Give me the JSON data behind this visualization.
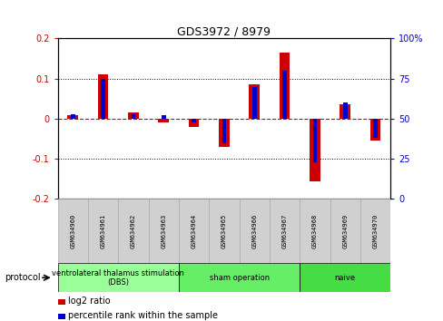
{
  "title": "GDS3972 / 8979",
  "samples": [
    "GSM634960",
    "GSM634961",
    "GSM634962",
    "GSM634963",
    "GSM634964",
    "GSM634965",
    "GSM634966",
    "GSM634967",
    "GSM634968",
    "GSM634969",
    "GSM634970"
  ],
  "log2_ratio": [
    0.01,
    0.11,
    0.015,
    -0.01,
    -0.02,
    -0.07,
    0.085,
    0.165,
    -0.155,
    0.035,
    -0.055
  ],
  "percentile_rank": [
    53,
    75,
    53,
    52,
    48,
    35,
    70,
    80,
    23,
    60,
    38
  ],
  "ylim_left": [
    -0.2,
    0.2
  ],
  "ylim_right": [
    0,
    100
  ],
  "yticks_left": [
    -0.2,
    -0.1,
    0.0,
    0.1,
    0.2
  ],
  "yticks_right": [
    0,
    25,
    50,
    75,
    100
  ],
  "bar_width": 0.35,
  "red_color": "#cc0000",
  "blue_color": "#0000cc",
  "groups": [
    {
      "label": "ventrolateral thalamus stimulation\n(DBS)",
      "start": 0,
      "end": 3,
      "color": "#99ff99"
    },
    {
      "label": "sham operation",
      "start": 4,
      "end": 7,
      "color": "#66ee66"
    },
    {
      "label": "naive",
      "start": 8,
      "end": 10,
      "color": "#44dd44"
    }
  ],
  "protocol_label": "protocol",
  "legend_red": "log2 ratio",
  "legend_blue": "percentile rank within the sample",
  "hline_color": "#cc0000",
  "sample_box_color": "#d0d0d0",
  "sample_box_edge": "#aaaaaa",
  "fig_bg": "#ffffff"
}
